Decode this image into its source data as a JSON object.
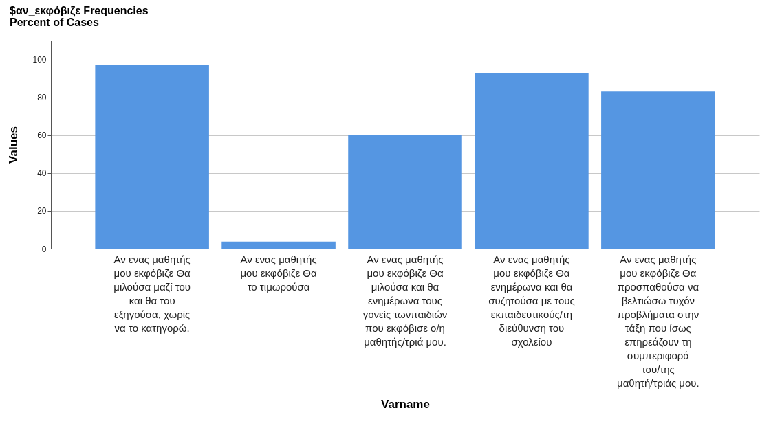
{
  "chart_data": {
    "type": "bar",
    "title": "$αν_εκφόβιζε Frequencies",
    "subtitle": "Percent of Cases",
    "xlabel": "Varname",
    "ylabel": "Values",
    "categories": [
      "Αν ενας μαθητής μου εκφόβιζε Θα μιλούσα μαζί του και θα του εξηγούσα, χωρίς να το κατηγορώ.",
      "Αν ενας μαθητής μου εκφόβιζε Θα το τιμωρούσα",
      "Αν ενας μαθητής μου εκφόβιζε Θα μιλούσα και θα ενημέρωνα τους γονείς τωνπαιδιών που εκφόβισε ο/η μαθητής/τριά μου.",
      "Αν ενας μαθητής μου εκφόβιζε Θα ενημέρωνα και θα συζητούσα με τους εκπαιδευτικούς/τη διεύθυνση του σχολείου",
      "Αν ενας μαθητής μου εκφόβιζε Θα προσπαθούσα να βελτιώσω τυχόν προβλήματα στην τάξη που ίσως επηρεάζουν τη συμπεριφορά του/της μαθητή/τριάς  μου."
    ],
    "values": [
      97.3,
      3.7,
      60.0,
      92.9,
      83.0
    ],
    "color": "#5596e2",
    "ylim": [
      0,
      110
    ],
    "yticks": [
      0,
      20,
      40,
      60,
      80,
      100
    ],
    "grid": "y"
  }
}
